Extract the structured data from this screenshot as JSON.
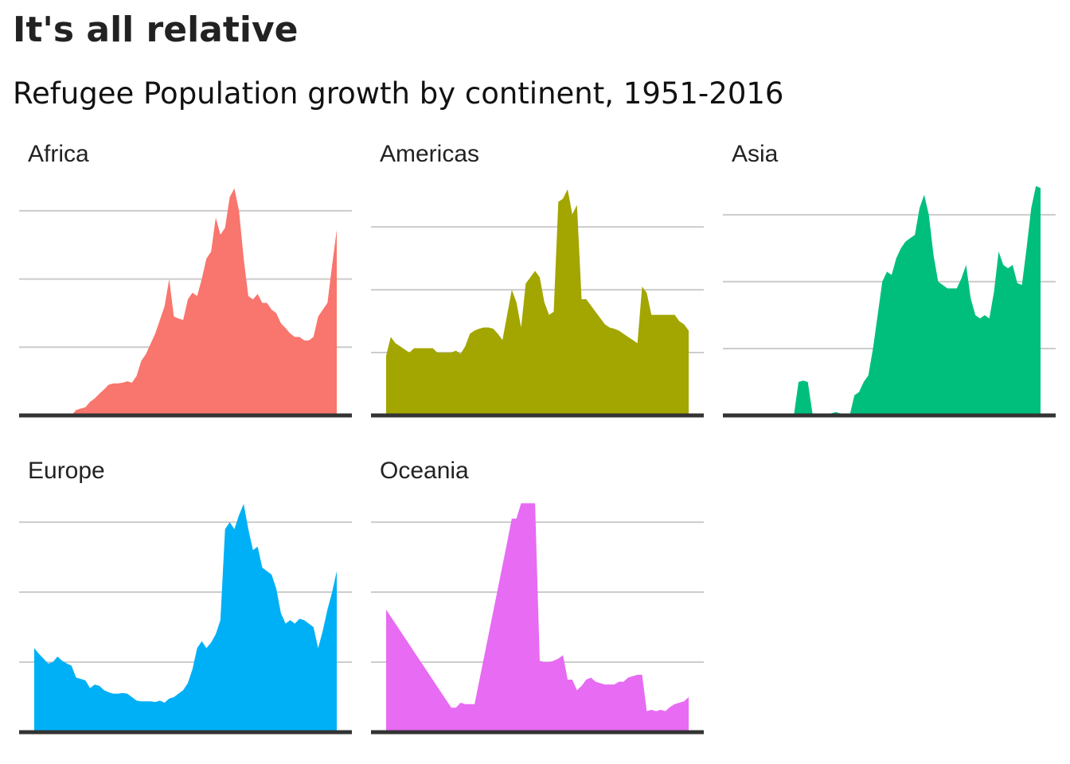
{
  "title": "It's all relative",
  "subtitle": "Refugee Population growth by continent, 1951-2016",
  "chart_data": [
    {
      "type": "area",
      "title": "Africa",
      "color": "#f8766d",
      "grid": true,
      "xlim": [
        1947.75,
        2019.25
      ],
      "ylim": [
        0,
        3.5
      ],
      "yticks": [
        0,
        1,
        2,
        3
      ],
      "x": [
        1951,
        1952,
        1953,
        1954,
        1955,
        1956,
        1957,
        1958,
        1959,
        1960,
        1961,
        1962,
        1963,
        1964,
        1965,
        1966,
        1967,
        1968,
        1969,
        1970,
        1971,
        1972,
        1973,
        1974,
        1975,
        1976,
        1977,
        1978,
        1979,
        1980,
        1981,
        1982,
        1983,
        1984,
        1985,
        1986,
        1987,
        1988,
        1989,
        1990,
        1991,
        1992,
        1993,
        1994,
        1995,
        1996,
        1997,
        1998,
        1999,
        2000,
        2001,
        2002,
        2003,
        2004,
        2005,
        2006,
        2007,
        2008,
        2009,
        2010,
        2011,
        2012,
        2013,
        2014,
        2015,
        2016
      ],
      "values": [
        0,
        0,
        0,
        0,
        0,
        0,
        0,
        0,
        0,
        0.08,
        0.1,
        0.12,
        0.2,
        0.25,
        0.32,
        0.38,
        0.45,
        0.47,
        0.47,
        0.48,
        0.5,
        0.48,
        0.58,
        0.8,
        0.9,
        1.05,
        1.2,
        1.4,
        1.6,
        2.0,
        1.45,
        1.42,
        1.4,
        1.7,
        1.8,
        1.75,
        2.0,
        2.3,
        2.4,
        2.9,
        2.65,
        2.75,
        3.2,
        3.33,
        3.0,
        2.3,
        1.75,
        1.7,
        1.78,
        1.65,
        1.65,
        1.55,
        1.5,
        1.35,
        1.28,
        1.2,
        1.15,
        1.15,
        1.1,
        1.1,
        1.15,
        1.45,
        1.55,
        1.65,
        2.2,
        2.72
      ]
    },
    {
      "type": "area",
      "title": "Americas",
      "color": "#a3a500",
      "grid": true,
      "xlim": [
        1947.75,
        2019.25
      ],
      "ylim": [
        0,
        3.8
      ],
      "yticks": [
        0,
        1,
        2,
        3
      ],
      "x": [
        1951,
        1952,
        1953,
        1954,
        1955,
        1956,
        1957,
        1958,
        1959,
        1960,
        1961,
        1962,
        1963,
        1964,
        1965,
        1966,
        1967,
        1968,
        1969,
        1970,
        1971,
        1972,
        1973,
        1974,
        1975,
        1976,
        1977,
        1978,
        1979,
        1980,
        1981,
        1982,
        1983,
        1984,
        1985,
        1986,
        1987,
        1988,
        1989,
        1990,
        1991,
        1992,
        1993,
        1994,
        1995,
        1996,
        1997,
        1998,
        1999,
        2000,
        2001,
        2002,
        2003,
        2004,
        2005,
        2006,
        2007,
        2008,
        2009,
        2010,
        2011,
        2012,
        2013,
        2014,
        2015,
        2016
      ],
      "values": [
        0.95,
        1.25,
        1.15,
        1.1,
        1.05,
        1.0,
        1.07,
        1.07,
        1.07,
        1.07,
        1.07,
        1.0,
        1.0,
        1.0,
        1.0,
        1.03,
        0.98,
        1.1,
        1.3,
        1.35,
        1.38,
        1.4,
        1.4,
        1.38,
        1.3,
        1.2,
        1.6,
        2.0,
        1.8,
        1.4,
        2.1,
        2.2,
        2.3,
        2.2,
        1.8,
        1.6,
        1.65,
        3.4,
        3.45,
        3.6,
        3.2,
        3.35,
        1.85,
        1.85,
        1.75,
        1.65,
        1.55,
        1.45,
        1.4,
        1.38,
        1.35,
        1.3,
        1.25,
        1.2,
        1.15,
        2.05,
        1.95,
        1.6,
        1.6,
        1.6,
        1.6,
        1.6,
        1.6,
        1.5,
        1.45,
        1.35
      ]
    },
    {
      "type": "area",
      "title": "Asia",
      "color": "#00bf7d",
      "grid": true,
      "xlim": [
        1947.75,
        2019.25
      ],
      "ylim": [
        0,
        3.57
      ],
      "yticks": [
        0,
        1,
        2,
        3
      ],
      "x": [
        1951,
        1952,
        1953,
        1954,
        1955,
        1956,
        1957,
        1958,
        1959,
        1960,
        1961,
        1962,
        1963,
        1964,
        1965,
        1966,
        1967,
        1968,
        1969,
        1970,
        1971,
        1972,
        1973,
        1974,
        1975,
        1976,
        1977,
        1978,
        1979,
        1980,
        1981,
        1982,
        1983,
        1984,
        1985,
        1986,
        1987,
        1988,
        1989,
        1990,
        1991,
        1992,
        1993,
        1994,
        1995,
        1996,
        1997,
        1998,
        1999,
        2000,
        2001,
        2002,
        2003,
        2004,
        2005,
        2006,
        2007,
        2008,
        2009,
        2010,
        2011,
        2012,
        2013,
        2014,
        2015,
        2016
      ],
      "values": [
        0,
        0,
        0,
        0,
        0,
        0,
        0,
        0,
        0,
        0,
        0,
        0,
        0,
        0.5,
        0.52,
        0.5,
        0.03,
        0.03,
        0.03,
        0.03,
        0.03,
        0.05,
        0.03,
        0.02,
        0,
        0.3,
        0.35,
        0.5,
        0.6,
        1.0,
        1.5,
        2.0,
        2.15,
        2.1,
        2.35,
        2.5,
        2.6,
        2.65,
        2.7,
        3.1,
        3.3,
        3.0,
        2.4,
        2.0,
        1.95,
        1.9,
        1.9,
        1.9,
        2.05,
        2.25,
        1.75,
        1.5,
        1.45,
        1.5,
        1.45,
        1.85,
        2.45,
        2.25,
        2.2,
        2.25,
        1.98,
        1.95,
        2.5,
        3.1,
        3.43,
        3.4
      ]
    },
    {
      "type": "area",
      "title": "Europe",
      "color": "#00b0f6",
      "grid": true,
      "xlim": [
        1947.75,
        2019.25
      ],
      "ylim": [
        0,
        3.41
      ],
      "yticks": [
        0,
        1,
        2,
        3
      ],
      "x": [
        1951,
        1952,
        1953,
        1954,
        1955,
        1956,
        1957,
        1958,
        1959,
        1960,
        1961,
        1962,
        1963,
        1964,
        1965,
        1966,
        1967,
        1968,
        1969,
        1970,
        1971,
        1972,
        1973,
        1974,
        1975,
        1976,
        1977,
        1978,
        1979,
        1980,
        1981,
        1982,
        1983,
        1984,
        1985,
        1986,
        1987,
        1988,
        1989,
        1990,
        1991,
        1992,
        1993,
        1994,
        1995,
        1996,
        1997,
        1998,
        1999,
        2000,
        2001,
        2002,
        2003,
        2004,
        2005,
        2006,
        2007,
        2008,
        2009,
        2010,
        2011,
        2012,
        2013,
        2014,
        2015,
        2016
      ],
      "values": [
        1.2,
        1.12,
        1.05,
        0.98,
        1.0,
        1.08,
        1.02,
        0.98,
        0.95,
        0.78,
        0.76,
        0.74,
        0.63,
        0.68,
        0.66,
        0.6,
        0.57,
        0.55,
        0.55,
        0.56,
        0.55,
        0.5,
        0.45,
        0.44,
        0.44,
        0.44,
        0.43,
        0.45,
        0.42,
        0.48,
        0.5,
        0.55,
        0.6,
        0.7,
        0.9,
        1.2,
        1.3,
        1.2,
        1.28,
        1.4,
        1.6,
        2.9,
        3.0,
        2.9,
        3.1,
        3.26,
        2.9,
        2.6,
        2.65,
        2.35,
        2.3,
        2.25,
        2.05,
        1.7,
        1.55,
        1.6,
        1.55,
        1.62,
        1.6,
        1.55,
        1.5,
        1.2,
        1.45,
        1.75,
        2.0,
        2.3
      ]
    },
    {
      "type": "area",
      "title": "Oceania",
      "color": "#e76bf3",
      "grid": true,
      "xlim": [
        1947.75,
        2019.25
      ],
      "ylim": [
        0,
        3.41
      ],
      "yticks": [
        0,
        1,
        2,
        3
      ],
      "x": [
        1951,
        1952,
        1953,
        1954,
        1955,
        1956,
        1957,
        1958,
        1959,
        1960,
        1961,
        1962,
        1963,
        1964,
        1965,
        1966,
        1967,
        1968,
        1969,
        1970,
        1971,
        1972,
        1973,
        1974,
        1975,
        1976,
        1977,
        1978,
        1979,
        1980,
        1981,
        1982,
        1983,
        1984,
        1985,
        1986,
        1987,
        1988,
        1989,
        1990,
        1991,
        1992,
        1993,
        1994,
        1995,
        1996,
        1997,
        1998,
        1999,
        2000,
        2001,
        2002,
        2003,
        2004,
        2005,
        2006,
        2007,
        2008,
        2009,
        2010,
        2011,
        2012,
        2013,
        2014,
        2015,
        2016
      ],
      "values": [
        1.75,
        1.65,
        1.55,
        1.45,
        1.35,
        1.25,
        1.15,
        1.05,
        0.95,
        0.85,
        0.75,
        0.65,
        0.55,
        0.45,
        0.35,
        0.35,
        0.42,
        0.4,
        0.4,
        0.4,
        0.73,
        1.06,
        1.39,
        1.72,
        2.05,
        2.38,
        2.71,
        3.05,
        3.05,
        3.27,
        3.27,
        3.27,
        3.27,
        1.02,
        1.0,
        1.0,
        1.02,
        1.05,
        1.1,
        0.75,
        0.75,
        0.6,
        0.66,
        0.75,
        0.78,
        0.72,
        0.7,
        0.68,
        0.68,
        0.68,
        0.72,
        0.72,
        0.78,
        0.8,
        0.82,
        0.82,
        0.3,
        0.32,
        0.3,
        0.32,
        0.3,
        0.36,
        0.4,
        0.42,
        0.44,
        0.5
      ]
    }
  ]
}
